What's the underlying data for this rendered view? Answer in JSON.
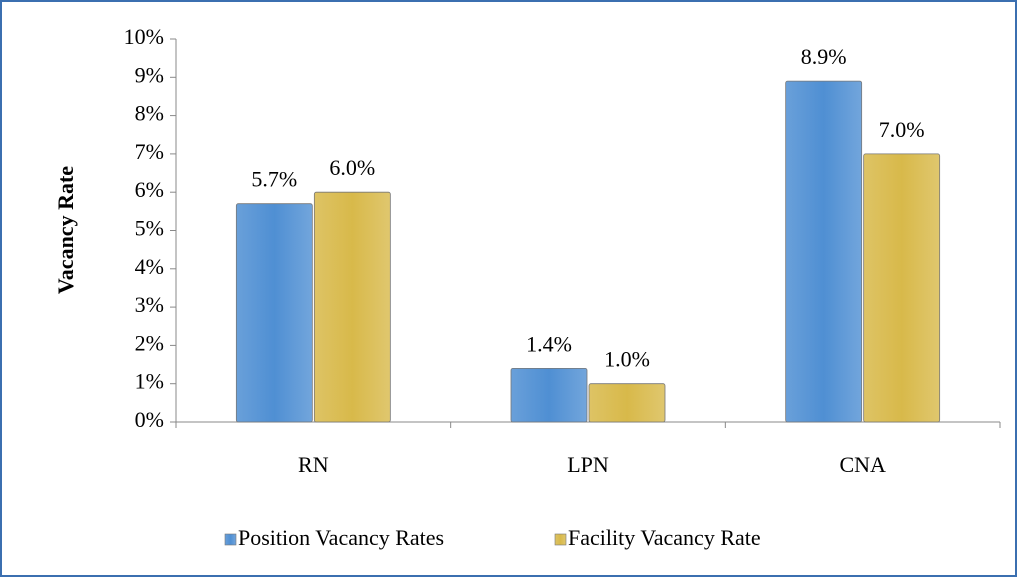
{
  "chart_data": {
    "type": "bar",
    "y_label": "Vacancy Rate",
    "categories": [
      "RN",
      "LPN",
      "CNA"
    ],
    "series": [
      {
        "name": "Position Vacancy Rates",
        "color": "#4f8fd3",
        "values": [
          5.7,
          1.4,
          8.9
        ],
        "value_labels": [
          "5.7%",
          "1.4%",
          "8.9%"
        ]
      },
      {
        "name": "Facility Vacancy Rate",
        "color": "#d8b94a",
        "values": [
          6.0,
          1.0,
          7.0
        ],
        "value_labels": [
          "6.0%",
          "1.0%",
          "7.0%"
        ]
      }
    ],
    "ylim": [
      0,
      10
    ],
    "yticks": [
      {
        "value": 0,
        "label": "0%"
      },
      {
        "value": 1,
        "label": "1%"
      },
      {
        "value": 2,
        "label": "2%"
      },
      {
        "value": 3,
        "label": "3%"
      },
      {
        "value": 4,
        "label": "4%"
      },
      {
        "value": 5,
        "label": "5%"
      },
      {
        "value": 6,
        "label": "6%"
      },
      {
        "value": 7,
        "label": "7%"
      },
      {
        "value": 8,
        "label": "8%"
      },
      {
        "value": 9,
        "label": "9%"
      },
      {
        "value": 10,
        "label": "10%"
      }
    ],
    "legend": "bottom"
  }
}
